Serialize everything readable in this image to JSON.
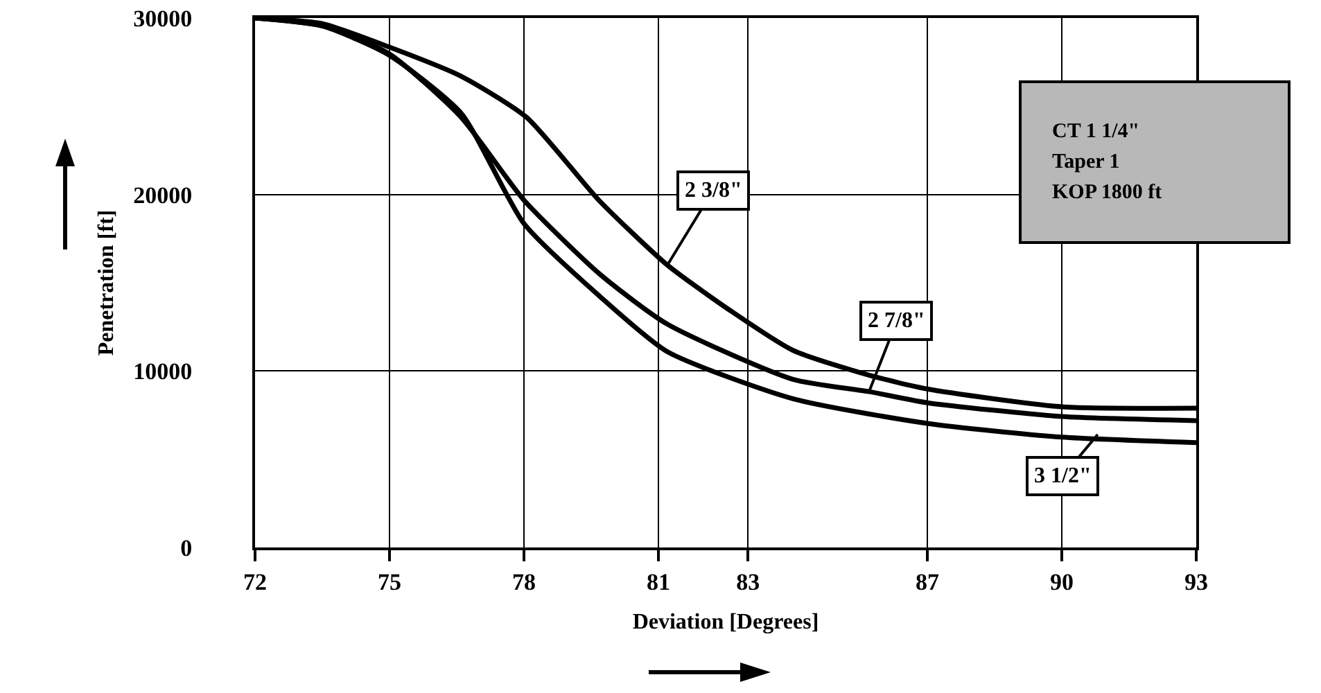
{
  "chart_data": {
    "type": "line",
    "xlabel": "Deviation [Degrees]",
    "ylabel": "Penetration [ft]",
    "xlim": [
      72,
      93
    ],
    "ylim": [
      0,
      30000
    ],
    "xticks": [
      72,
      75,
      78,
      81,
      83,
      87,
      90,
      93
    ],
    "yticks": [
      0,
      10000,
      20000,
      30000
    ],
    "grid": true,
    "marker": "none",
    "line_style": "solid",
    "series": [
      {
        "color": "#000000",
        "x": [
          72,
          73.5,
          75,
          76.6,
          78.06,
          79.67,
          81.2,
          82.6,
          84,
          85.7,
          87,
          90,
          93
        ],
        "values": [
          30000,
          29680,
          28350,
          26700,
          24370,
          19680,
          16000,
          13430,
          11170,
          9760,
          8980,
          7970,
          7890
        ]
      },
      {
        "color": "#000000",
        "x": [
          72,
          73.5,
          75,
          76.6,
          78,
          79.7,
          81.2,
          84,
          85.7,
          87,
          90,
          93
        ],
        "values": [
          30000,
          29550,
          27960,
          24370,
          19680,
          15470,
          12650,
          9530,
          8830,
          8200,
          7420,
          7190
        ]
      },
      {
        "color": "#000000",
        "x": [
          72,
          73.5,
          75,
          76.6,
          78,
          79.7,
          81.2,
          84,
          87,
          90,
          93
        ],
        "values": [
          30000,
          29550,
          27880,
          24600,
          18350,
          14210,
          11090,
          8430,
          7030,
          6250,
          5940
        ]
      }
    ],
    "annotations": [
      {
        "text": "2 3/8\"",
        "x": 81.2,
        "y": 16000
      },
      {
        "text": "2 7/8\"",
        "x": 85.7,
        "y": 8830
      },
      {
        "text": "3 1/2\"",
        "x": 90.8,
        "y": 6400
      },
      "CT 1 1/4\"",
      "Taper 1",
      "KOP 1800 ft"
    ]
  }
}
